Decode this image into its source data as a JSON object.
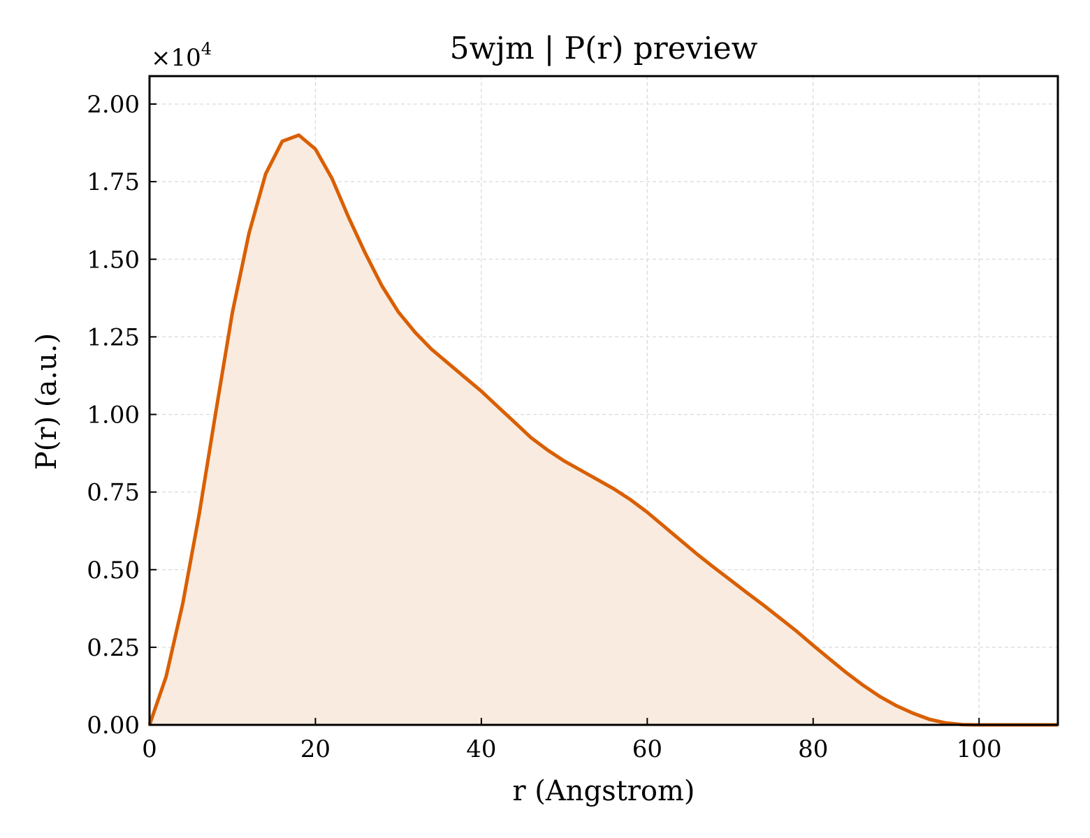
{
  "chart_data": {
    "type": "area",
    "title": "5wjm | P(r) preview",
    "xlabel": "r (Angstrom)",
    "ylabel": "P(r) (a.u.)",
    "y_multiplier_label": "×10",
    "y_multiplier_exponent": "4",
    "xlim": [
      0,
      109.5
    ],
    "ylim": [
      0,
      20900
    ],
    "x_ticks": [
      0,
      20,
      40,
      60,
      80,
      100
    ],
    "x_tick_labels": [
      "0",
      "20",
      "40",
      "60",
      "80",
      "100"
    ],
    "y_ticks": [
      0,
      2500,
      5000,
      7500,
      10000,
      12500,
      15000,
      17500,
      20000
    ],
    "y_tick_labels": [
      "0.00",
      "0.25",
      "0.50",
      "0.75",
      "1.00",
      "1.25",
      "1.50",
      "1.75",
      "2.00"
    ],
    "grid": true,
    "ticks_direction": "in",
    "colors": {
      "line": "#d95f02",
      "fill": "#f9ebe0"
    },
    "series": [
      {
        "x": [
          0,
          2,
          4,
          6,
          8,
          10,
          12,
          14,
          16,
          18,
          20,
          22,
          24,
          26,
          28,
          30,
          32,
          34,
          36,
          38,
          40,
          42,
          44,
          46,
          48,
          50,
          52,
          54,
          56,
          58,
          60,
          62,
          64,
          66,
          68,
          70,
          72,
          74,
          76,
          78,
          80,
          82,
          84,
          86,
          88,
          90,
          92,
          94,
          96,
          98,
          100,
          102,
          104,
          106,
          108,
          109.5
        ],
        "y": [
          0,
          1550,
          3900,
          6800,
          10100,
          13300,
          15850,
          17750,
          18800,
          19000,
          18550,
          17600,
          16350,
          15200,
          14150,
          13300,
          12650,
          12100,
          11650,
          11200,
          10750,
          10250,
          9750,
          9250,
          8850,
          8500,
          8200,
          7900,
          7600,
          7250,
          6850,
          6400,
          5950,
          5500,
          5080,
          4670,
          4260,
          3860,
          3440,
          3020,
          2560,
          2120,
          1680,
          1280,
          920,
          620,
          380,
          180,
          60,
          10,
          0,
          0,
          0,
          0,
          0,
          0
        ]
      }
    ]
  }
}
